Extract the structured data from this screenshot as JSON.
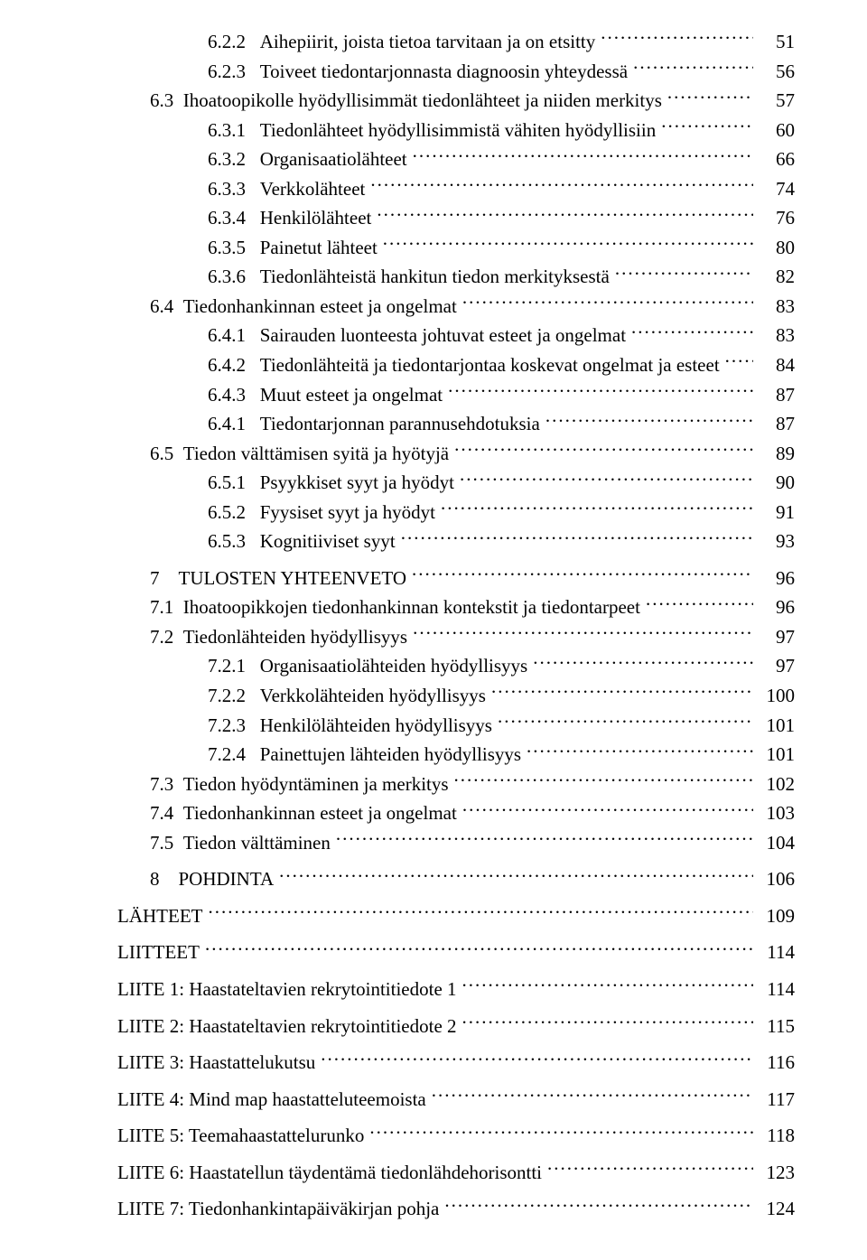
{
  "font": {
    "family": "Times New Roman",
    "size_pt": 16,
    "color": "#000000"
  },
  "leader": {
    "char": ".",
    "color": "#000000"
  },
  "background_color": "#ffffff",
  "toc": [
    {
      "level": 3,
      "number": "6.2.2",
      "title": "Aihepiirit, joista tietoa tarvitaan ja on etsitty",
      "page": 51
    },
    {
      "level": 3,
      "number": "6.2.3",
      "title": "Toiveet tiedontarjonnasta diagnoosin yhteydessä",
      "page": 56
    },
    {
      "level": 2,
      "number": "6.3",
      "title": "Ihoatoopikolle hyödyllisimmät tiedonlähteet ja niiden merkitys",
      "page": 57
    },
    {
      "level": 3,
      "number": "6.3.1",
      "title": "Tiedonlähteet hyödyllisimmistä vähiten hyödyllisiin",
      "page": 60
    },
    {
      "level": 3,
      "number": "6.3.2",
      "title": "Organisaatiolähteet",
      "page": 66
    },
    {
      "level": 3,
      "number": "6.3.3",
      "title": "Verkkolähteet",
      "page": 74
    },
    {
      "level": 3,
      "number": "6.3.4",
      "title": "Henkilölähteet",
      "page": 76
    },
    {
      "level": 3,
      "number": "6.3.5",
      "title": "Painetut lähteet",
      "page": 80
    },
    {
      "level": 3,
      "number": "6.3.6",
      "title": "Tiedonlähteistä hankitun tiedon merkityksestä",
      "page": 82
    },
    {
      "level": 2,
      "number": "6.4",
      "title": "Tiedonhankinnan esteet ja ongelmat",
      "page": 83
    },
    {
      "level": 3,
      "number": "6.4.1",
      "title": "Sairauden luonteesta johtuvat esteet ja ongelmat",
      "page": 83
    },
    {
      "level": 3,
      "number": "6.4.2",
      "title": "Tiedonlähteitä ja tiedontarjontaa koskevat ongelmat ja esteet",
      "page": 84
    },
    {
      "level": 3,
      "number": "6.4.3",
      "title": "Muut esteet ja ongelmat",
      "page": 87
    },
    {
      "level": 3,
      "number": "6.4.1",
      "title": "Tiedontarjonnan parannusehdotuksia",
      "page": 87
    },
    {
      "level": 2,
      "number": "6.5",
      "title": "Tiedon välttämisen syitä ja hyötyjä",
      "page": 89
    },
    {
      "level": 3,
      "number": "6.5.1",
      "title": "Psyykkiset syyt ja hyödyt",
      "page": 90
    },
    {
      "level": 3,
      "number": "6.5.2",
      "title": "Fyysiset syyt ja hyödyt",
      "page": 91
    },
    {
      "level": 3,
      "number": "6.5.3",
      "title": "Kognitiiviset syyt",
      "page": 93
    },
    {
      "level": 1,
      "number": "7",
      "title": "TULOSTEN YHTEENVETO",
      "page": 96
    },
    {
      "level": 2,
      "number": "7.1",
      "title": "Ihoatoopikkojen tiedonhankinnan kontekstit ja tiedontarpeet",
      "page": 96
    },
    {
      "level": 2,
      "number": "7.2",
      "title": "Tiedonlähteiden hyödyllisyys",
      "page": 97
    },
    {
      "level": 3,
      "number": "7.2.1",
      "title": "Organisaatiolähteiden hyödyllisyys",
      "page": 97
    },
    {
      "level": 3,
      "number": "7.2.2",
      "title": "Verkkolähteiden hyödyllisyys",
      "page": 100
    },
    {
      "level": 3,
      "number": "7.2.3",
      "title": "Henkilölähteiden hyödyllisyys",
      "page": 101
    },
    {
      "level": 3,
      "number": "7.2.4",
      "title": "Painettujen lähteiden hyödyllisyys",
      "page": 101
    },
    {
      "level": 2,
      "number": "7.3",
      "title": "Tiedon hyödyntäminen ja merkitys",
      "page": 102
    },
    {
      "level": 2,
      "number": "7.4",
      "title": "Tiedonhankinnan esteet ja ongelmat",
      "page": 103
    },
    {
      "level": 2,
      "number": "7.5",
      "title": "Tiedon välttäminen",
      "page": 104
    },
    {
      "level": 1,
      "number": "8",
      "title": "POHDINTA",
      "page": 106
    },
    {
      "level": 0,
      "number": "",
      "title": "LÄHTEET",
      "page": 109
    },
    {
      "level": 0,
      "number": "",
      "title": "LIITTEET",
      "page": 114
    },
    {
      "level": 0,
      "number": "",
      "title": "LIITE 1: Haastateltavien rekrytointitiedote 1",
      "page": 114
    },
    {
      "level": 0,
      "number": "",
      "title": "LIITE 2: Haastateltavien rekrytointitiedote 2",
      "page": 115
    },
    {
      "level": 0,
      "number": "",
      "title": "LIITE 3: Haastattelukutsu",
      "page": 116
    },
    {
      "level": 0,
      "number": "",
      "title": "LIITE 4: Mind map haastatteluteemoista",
      "page": 117
    },
    {
      "level": 0,
      "number": "",
      "title": "LIITE 5: Teemahaastattelurunko",
      "page": 118
    },
    {
      "level": 0,
      "number": "",
      "title": "LIITE 6: Haastatellun täydentämä tiedonlähdehorisontti",
      "page": 123
    },
    {
      "level": 0,
      "number": "",
      "title": "LIITE 7: Tiedonhankintapäiväkirjan pohja",
      "page": 124
    }
  ]
}
